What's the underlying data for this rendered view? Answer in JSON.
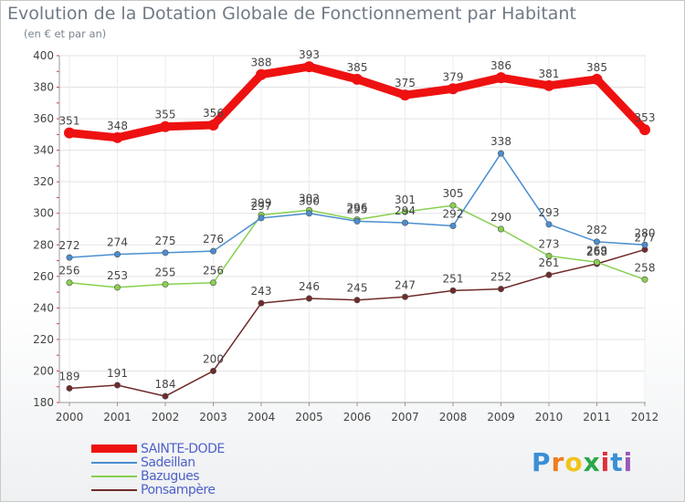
{
  "chart_data": {
    "type": "line",
    "title": "Evolution de la Dotation Globale de Fonctionnement par Habitant",
    "subtitle": "(en € et par an)",
    "xlabel": "",
    "ylabel": "",
    "x": [
      "2000",
      "2001",
      "2002",
      "2003",
      "2004",
      "2005",
      "2006",
      "2007",
      "2008",
      "2009",
      "2010",
      "2011",
      "2012"
    ],
    "ylim": [
      180,
      400
    ],
    "yticks": [
      180,
      200,
      220,
      240,
      260,
      280,
      300,
      320,
      340,
      360,
      380,
      400
    ],
    "grid": true,
    "legend_position": "bottom-left",
    "series": [
      {
        "name": "SAINTE-DODE",
        "color": "#ee1111",
        "values": [
          351,
          348,
          355,
          356,
          388,
          393,
          385,
          375,
          379,
          386,
          381,
          385,
          353
        ]
      },
      {
        "name": "Sadeillan",
        "color": "#4a8ed0",
        "values": [
          272,
          274,
          275,
          276,
          297,
          300,
          295,
          294,
          292,
          338,
          293,
          282,
          280
        ]
      },
      {
        "name": "Bazugues",
        "color": "#88d050",
        "values": [
          256,
          253,
          255,
          256,
          299,
          302,
          296,
          301,
          305,
          290,
          273,
          269,
          258
        ]
      },
      {
        "name": "Ponsampère",
        "color": "#702a2a",
        "values": [
          189,
          191,
          184,
          200,
          243,
          246,
          245,
          247,
          251,
          252,
          261,
          268,
          277
        ]
      }
    ]
  },
  "logo": {
    "text": "Proxiti",
    "colors": [
      "#3a8fd6",
      "#f07d1e",
      "#f0c419",
      "#2aa84a",
      "#e0303a",
      "#3a8fd6",
      "#9b59b6"
    ]
  }
}
